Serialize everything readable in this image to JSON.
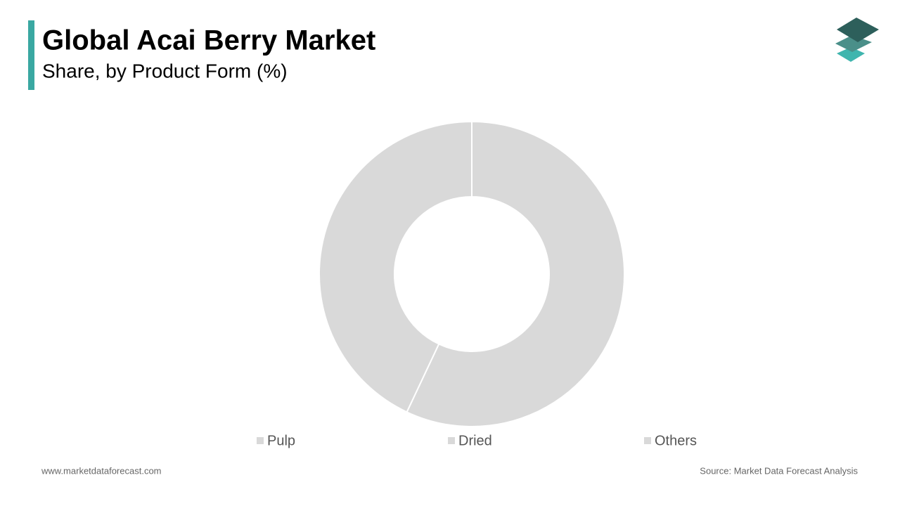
{
  "chart_data": {
    "type": "donut",
    "title": "Global Acai Berry Market",
    "subtitle": "Share, by Product Form (%)",
    "categories": [
      "Pulp",
      "Dried",
      "Others"
    ],
    "values": [
      57,
      43,
      0
    ],
    "colors": [
      "#d9d9d9",
      "#d9d9d9",
      "#d9d9d9"
    ],
    "legend": "bottom"
  },
  "footer": {
    "website": "www.marketdataforecast.com",
    "source": "Source: Market Data Forecast Analysis"
  }
}
